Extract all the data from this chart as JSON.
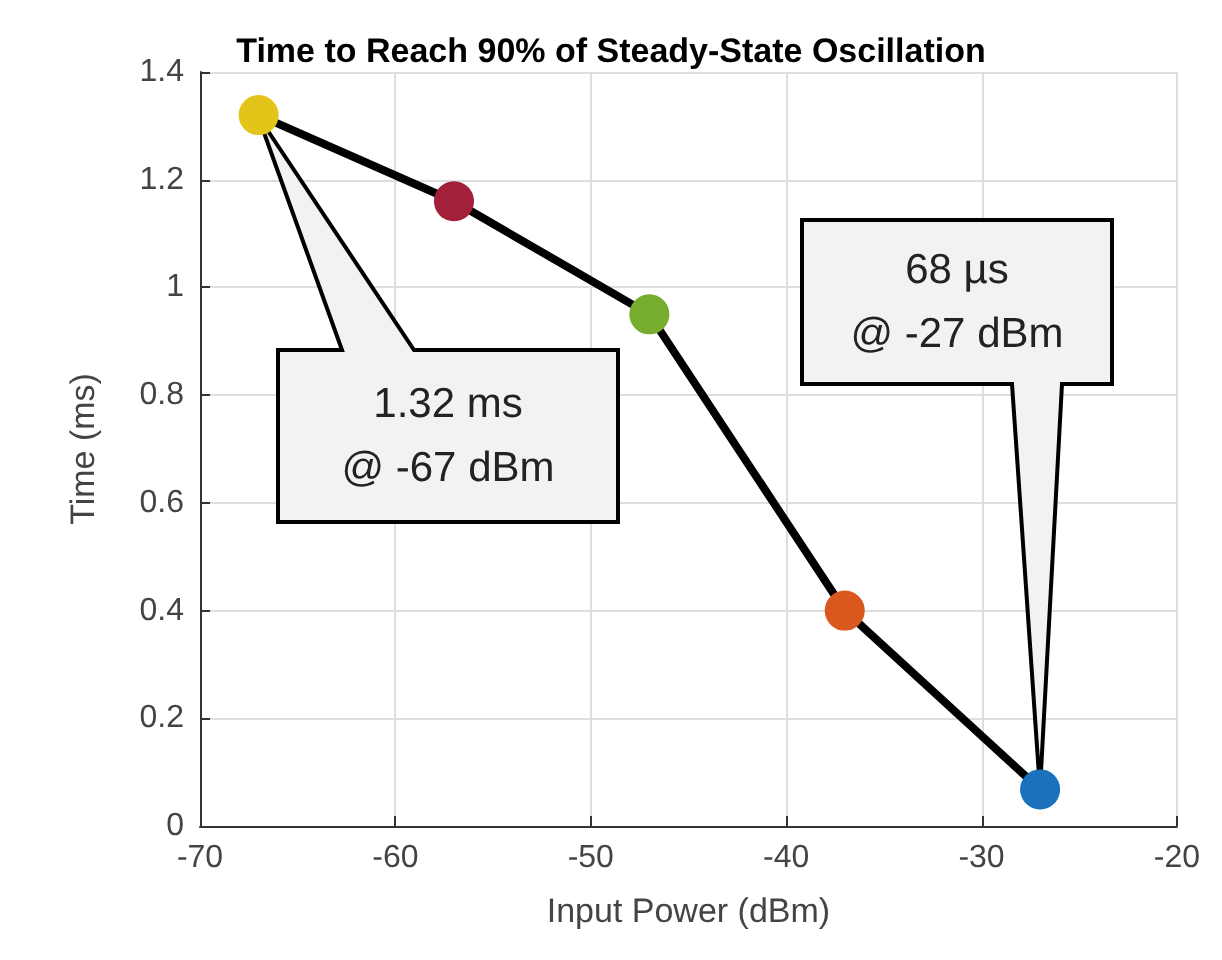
{
  "chart_data": {
    "type": "line",
    "title": "Time to Reach 90% of Steady-State Oscillation",
    "xlabel": "Input Power (dBm)",
    "ylabel": "Time (ms)",
    "x": [
      -67,
      -57,
      -47,
      -37,
      -27
    ],
    "series": [
      {
        "color": "#000000",
        "values": [
          1.32,
          1.16,
          0.95,
          0.4,
          0.068
        ],
        "colors": [
          "#e3c51a",
          "#a2203a",
          "#76ad2e",
          "#d9581e",
          "#1a72bd"
        ]
      }
    ],
    "xlim": [
      -70,
      -20
    ],
    "xticks": [
      -70,
      -60,
      -50,
      -40,
      -30,
      -20
    ],
    "ylim": [
      0,
      1.4
    ],
    "yticks": [
      0,
      0.2,
      0.4,
      0.6,
      0.8,
      1,
      1.2,
      1.4
    ],
    "grid": true,
    "marker": "circle",
    "line_style": "solid",
    "annotations": [
      "1.32 ms\n@ -67 dBm",
      "68 µs\n@ -27 dBm"
    ]
  }
}
